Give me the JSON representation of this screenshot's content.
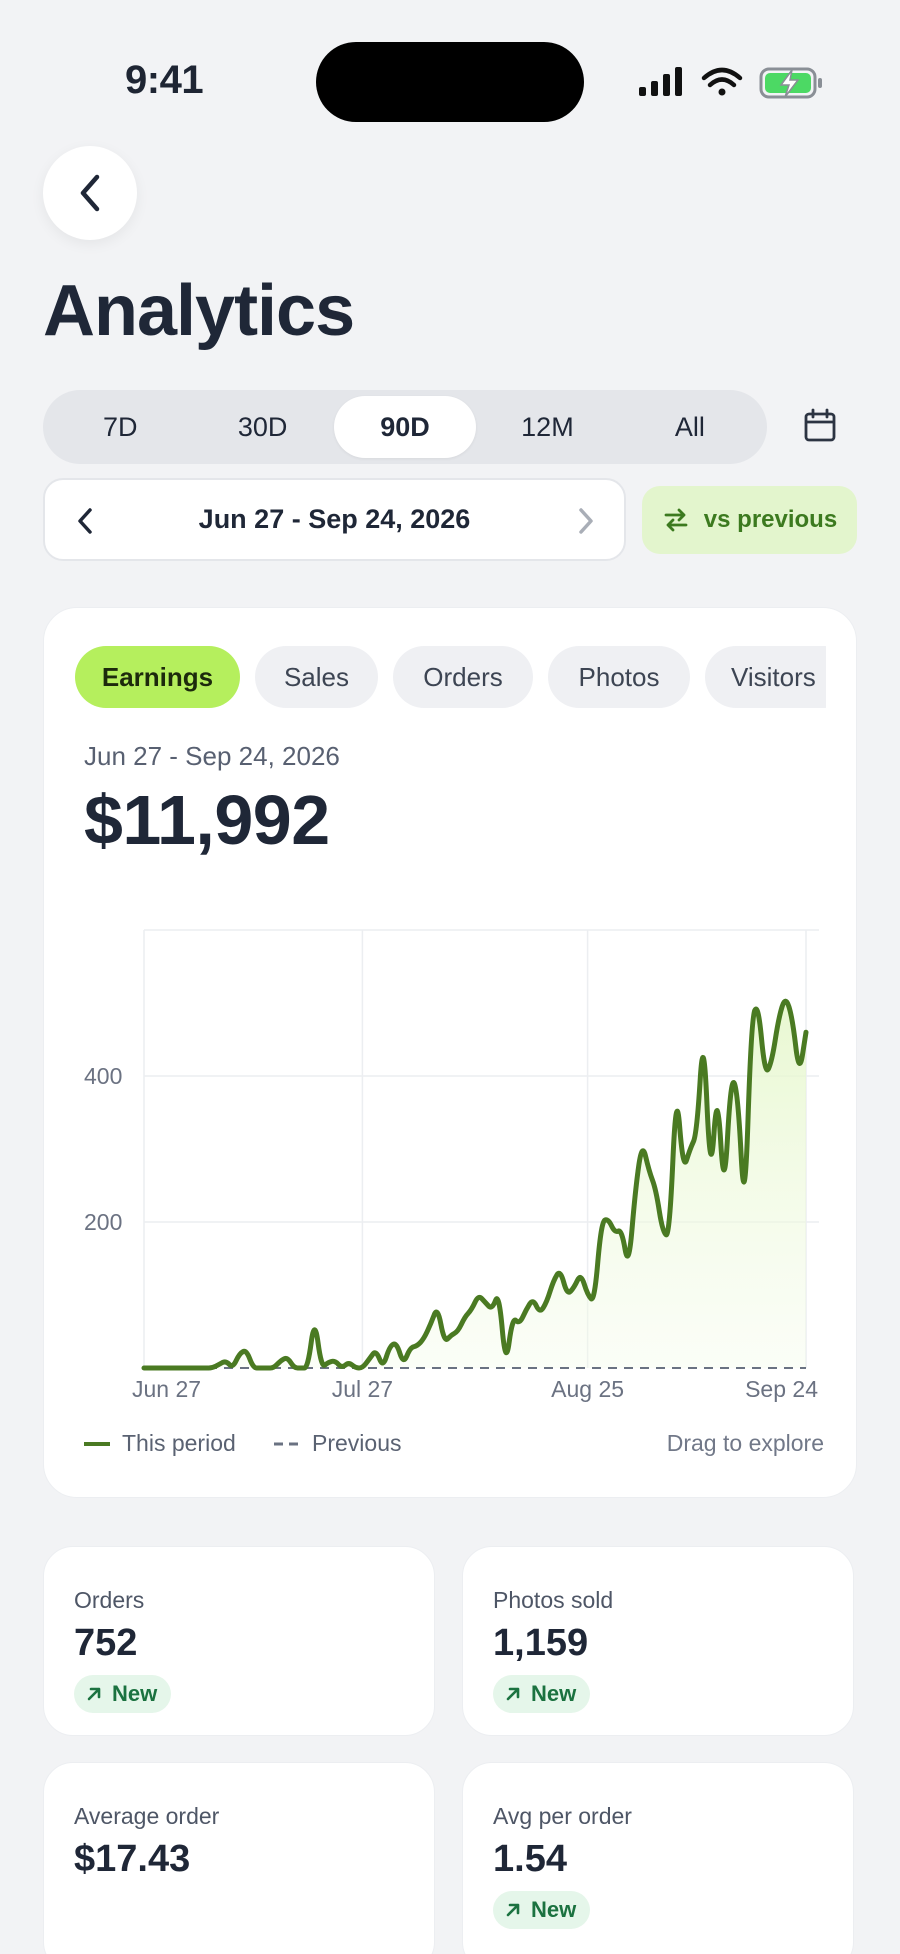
{
  "status_bar": {
    "time": "9:41"
  },
  "header": {
    "title": "Analytics"
  },
  "range_tabs": [
    {
      "label": "7D",
      "active": false
    },
    {
      "label": "30D",
      "active": false
    },
    {
      "label": "90D",
      "active": true
    },
    {
      "label": "12M",
      "active": false
    },
    {
      "label": "All",
      "active": false
    }
  ],
  "date_nav": {
    "label": "Jun 27 - Sep 24, 2026"
  },
  "compare_button": {
    "label": "vs previous"
  },
  "metric_tabs": [
    {
      "label": "Earnings",
      "active": true
    },
    {
      "label": "Sales",
      "active": false
    },
    {
      "label": "Orders",
      "active": false
    },
    {
      "label": "Photos",
      "active": false
    },
    {
      "label": "Visitors",
      "active": false
    }
  ],
  "summary": {
    "range": "Jun 27 - Sep 24, 2026",
    "total": "$11,992"
  },
  "chart_data": {
    "type": "line",
    "x_tick_labels": [
      "Jun 27",
      "Jul 27",
      "Aug 25",
      "Sep 24"
    ],
    "y_tick_labels": [
      "200",
      "400"
    ],
    "ylim": [
      0,
      600
    ],
    "grid": true,
    "legend_position": "bottom-left",
    "colors": {
      "this_period": "#4a7a22",
      "previous": "#6a7282",
      "fill": "#e6f7cc"
    },
    "series": [
      {
        "name": "This period",
        "values": [
          0,
          0,
          0,
          0,
          0,
          0,
          0,
          0,
          0,
          0,
          0,
          5,
          10,
          0,
          20,
          25,
          0,
          0,
          0,
          0,
          10,
          15,
          0,
          0,
          0,
          70,
          0,
          8,
          10,
          0,
          8,
          0,
          0,
          12,
          25,
          0,
          30,
          35,
          5,
          28,
          30,
          40,
          60,
          85,
          35,
          45,
          50,
          70,
          80,
          100,
          90,
          80,
          105,
          0,
          70,
          60,
          80,
          95,
          75,
          90,
          120,
          135,
          100,
          110,
          130,
          100,
          90,
          200,
          205,
          185,
          190,
          135,
          245,
          310,
          270,
          245,
          185,
          180,
          390,
          270,
          300,
          320,
          470,
          250,
          390,
          230,
          400,
          380,
          200,
          480,
          500,
          400,
          420,
          480,
          510,
          480,
          400,
          460
        ]
      },
      {
        "name": "Previous",
        "values": [
          0,
          0,
          0,
          0
        ]
      }
    ]
  },
  "legend": {
    "this_period": "This period",
    "previous": "Previous",
    "hint": "Drag to explore"
  },
  "stats": [
    {
      "label": "Orders",
      "value": "752",
      "badge": "New"
    },
    {
      "label": "Photos sold",
      "value": "1,159",
      "badge": "New"
    },
    {
      "label": "Average order",
      "value": "$17.43",
      "badge": ""
    },
    {
      "label": "Avg per order",
      "value": "1.54",
      "badge": "New"
    }
  ]
}
